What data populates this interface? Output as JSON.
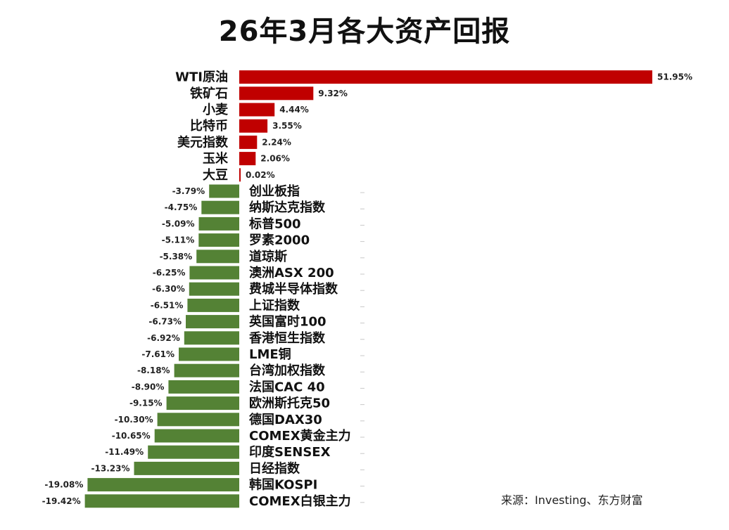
{
  "chart_data": {
    "type": "bar",
    "orientation": "horizontal",
    "title": "26年3月各大资产回报",
    "source": "来源：Investing、东方财富",
    "xlabel": "",
    "ylabel": "",
    "grid": false,
    "legend": "none",
    "colors": {
      "positive": "#c00000",
      "negative": "#548235"
    },
    "categories": [
      "WTI原油",
      "铁矿石",
      "小麦",
      "比特币",
      "美元指数",
      "玉米",
      "大豆",
      "创业板指",
      "纳斯达克指数",
      "标普500",
      "罗素2000",
      "道琼斯",
      "澳洲ASX 200",
      "费城半导体指数",
      "上证指数",
      "英国富时100",
      "香港恒生指数",
      "LME铜",
      "台湾加权指数",
      "法国CAC 40",
      "欧洲斯托克50",
      "德国DAX30",
      "COMEX黄金主力",
      "印度SENSEX",
      "日经指数",
      "韩国KOSPI",
      "COMEX白银主力"
    ],
    "values": [
      51.95,
      9.32,
      4.44,
      3.55,
      2.24,
      2.06,
      0.02,
      -3.79,
      -4.75,
      -5.09,
      -5.11,
      -5.38,
      -6.25,
      -6.3,
      -6.51,
      -6.73,
      -6.92,
      -7.61,
      -8.18,
      -8.9,
      -9.15,
      -10.3,
      -10.65,
      -11.49,
      -13.23,
      -19.08,
      -19.42
    ],
    "data_labels": [
      "51.95%",
      "9.32%",
      "4.44%",
      "3.55%",
      "2.24%",
      "2.06%",
      "0.02%",
      "-3.79%",
      "-4.75%",
      "-5.09%",
      "-5.11%",
      "-5.38%",
      "-6.25%",
      "-6.30%",
      "-6.51%",
      "-6.73%",
      "-6.92%",
      "-7.61%",
      "-8.18%",
      "-8.90%",
      "-9.15%",
      "-10.30%",
      "-10.65%",
      "-11.49%",
      "-13.23%",
      "-19.08%",
      "-19.42%"
    ]
  }
}
